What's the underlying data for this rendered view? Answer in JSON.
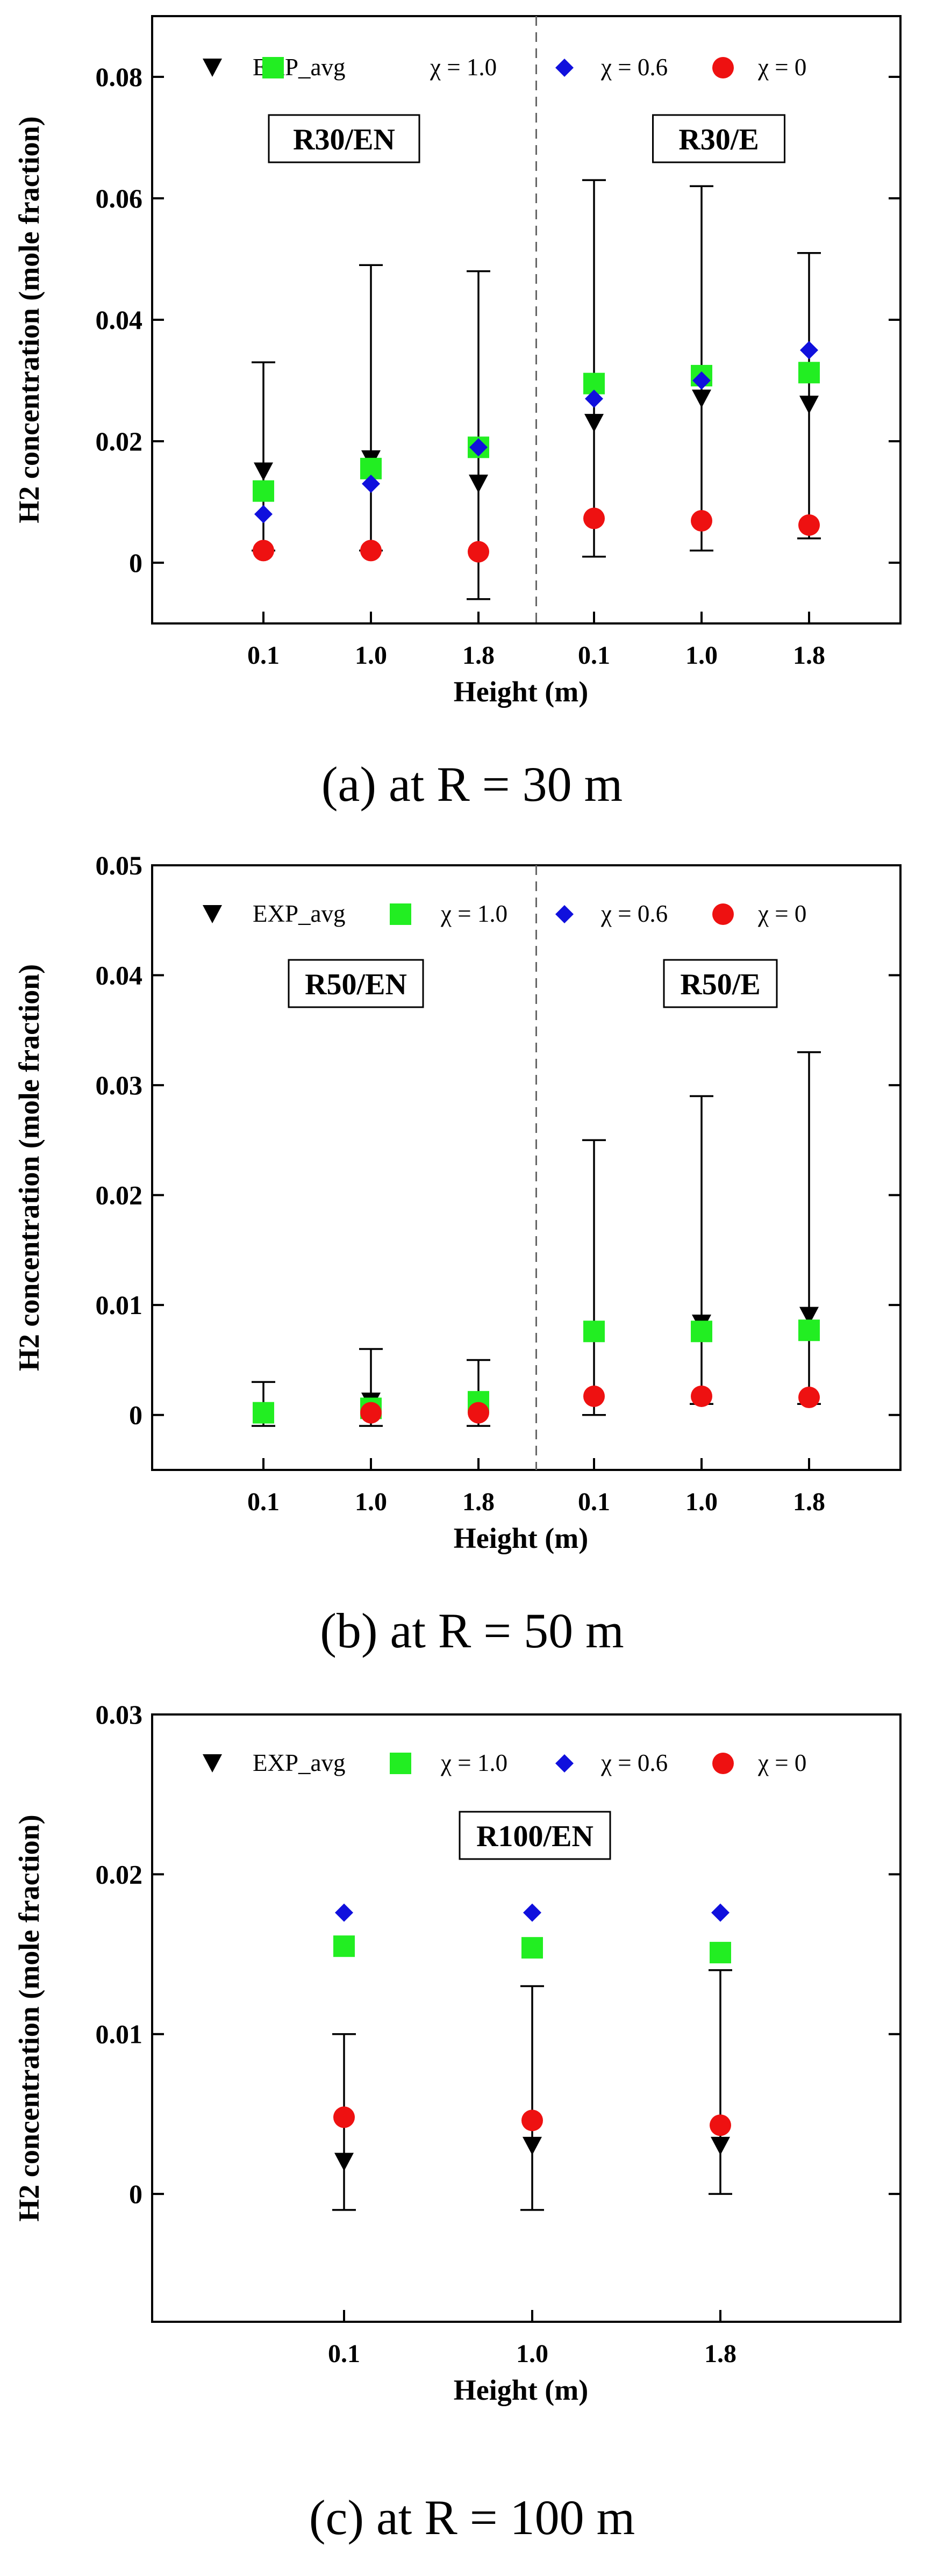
{
  "figure": {
    "background": "#ffffff"
  },
  "legend": [
    {
      "key": "exp",
      "label": "EXP_avg",
      "marker": "triangle-down",
      "color": "#000000"
    },
    {
      "key": "chi10",
      "label": "χ = 1.0",
      "marker": "square",
      "color": "#22ee22"
    },
    {
      "key": "chi06",
      "label": "χ = 0.6",
      "marker": "diamond",
      "color": "#1010dd"
    },
    {
      "key": "chi0",
      "label": "χ = 0",
      "marker": "circle",
      "color": "#ee1111"
    }
  ],
  "chart_data": [
    {
      "type": "scatter",
      "caption": "(a) at R = 30 m",
      "xlabel": "Height (m)",
      "ylabel": "H2 concentration (mole fraction)",
      "ylim": [
        -0.01,
        0.09
      ],
      "yticks": [
        0,
        0.02,
        0.04,
        0.06,
        0.08
      ],
      "ytick_labels": [
        "0",
        "0.02",
        "0.04",
        "0.06",
        "0.08"
      ],
      "categories": [
        "0.1",
        "1.0",
        "1.8",
        "0.1",
        "1.0",
        "1.8"
      ],
      "divider_after_index": 2,
      "regions": [
        {
          "label": "R30/EN",
          "position": "top-left"
        },
        {
          "label": "R30/E",
          "position": "top-right"
        }
      ],
      "series": [
        {
          "key": "exp",
          "name": "EXP_avg",
          "values": [
            0.015,
            0.017,
            0.013,
            0.023,
            0.027,
            0.026
          ],
          "err_low": [
            0.002,
            0.002,
            -0.006,
            0.001,
            0.002,
            0.004
          ],
          "err_high": [
            0.033,
            0.049,
            0.048,
            0.063,
            0.062,
            0.051
          ]
        },
        {
          "key": "chi10",
          "name": "χ = 1.0",
          "values": [
            0.0118,
            0.0155,
            0.019,
            0.0295,
            0.0308,
            0.0313
          ]
        },
        {
          "key": "chi06",
          "name": "χ = 0.6",
          "values": [
            0.008,
            0.013,
            0.019,
            0.027,
            0.03,
            0.035
          ]
        },
        {
          "key": "chi0",
          "name": "χ = 0",
          "values": [
            0.002,
            0.002,
            0.0018,
            0.0073,
            0.0069,
            0.0062
          ]
        }
      ]
    },
    {
      "type": "scatter",
      "caption": "(b) at R = 50 m",
      "xlabel": "Height (m)",
      "ylabel": "H2 concentration (mole fraction)",
      "ylim": [
        -0.005,
        0.05
      ],
      "yticks": [
        0,
        0.01,
        0.02,
        0.03,
        0.04,
        0.05
      ],
      "ytick_labels": [
        "0",
        "0.01",
        "0.02",
        "0.03",
        "0.04",
        "0.05"
      ],
      "categories": [
        "0.1",
        "1.0",
        "1.8",
        "0.1",
        "1.0",
        "1.8"
      ],
      "divider_after_index": 2,
      "regions": [
        {
          "label": "R50/EN",
          "position": "top-left"
        },
        {
          "label": "R50/E",
          "position": "top-right"
        }
      ],
      "series": [
        {
          "key": "exp",
          "name": "EXP_avg",
          "values": [
            0.0002,
            0.0012,
            0.0003,
            0.0073,
            0.0083,
            0.009
          ],
          "err_low": [
            -0.001,
            -0.001,
            -0.001,
            0.0,
            0.001,
            0.001
          ],
          "err_high": [
            0.003,
            0.006,
            0.005,
            0.025,
            0.029,
            0.033
          ]
        },
        {
          "key": "chi10",
          "name": "χ = 1.0",
          "values": [
            0.0002,
            0.0006,
            0.0012,
            0.0076,
            0.0076,
            0.0077
          ]
        },
        {
          "key": "chi06",
          "name": "χ = 0.6",
          "values": [
            null,
            null,
            null,
            null,
            null,
            null
          ]
        },
        {
          "key": "chi0",
          "name": "χ = 0",
          "values": [
            null,
            0.0002,
            0.0002,
            0.0017,
            0.0017,
            0.0016
          ]
        }
      ]
    },
    {
      "type": "scatter",
      "caption": "(c) at R = 100 m",
      "xlabel": "Height (m)",
      "ylabel": "H2 concentration (mole fraction)",
      "ylim": [
        -0.008,
        0.03
      ],
      "yticks": [
        0,
        0.01,
        0.02,
        0.03
      ],
      "ytick_labels": [
        "0",
        "0.01",
        "0.02",
        "0.03"
      ],
      "categories": [
        "0.1",
        "1.0",
        "1.8"
      ],
      "divider_after_index": null,
      "regions": [
        {
          "label": "R100/EN",
          "position": "top-center"
        }
      ],
      "series": [
        {
          "key": "exp",
          "name": "EXP_avg",
          "values": [
            0.002,
            0.003,
            0.003
          ],
          "err_low": [
            -0.001,
            -0.001,
            0.0
          ],
          "err_high": [
            0.01,
            0.013,
            0.014
          ]
        },
        {
          "key": "chi10",
          "name": "χ = 1.0",
          "values": [
            0.0155,
            0.0154,
            0.0151
          ]
        },
        {
          "key": "chi06",
          "name": "χ = 0.6",
          "values": [
            0.0176,
            0.0176,
            0.0176
          ]
        },
        {
          "key": "chi0",
          "name": "χ = 0",
          "values": [
            0.0048,
            0.0046,
            0.0043
          ]
        }
      ]
    }
  ]
}
